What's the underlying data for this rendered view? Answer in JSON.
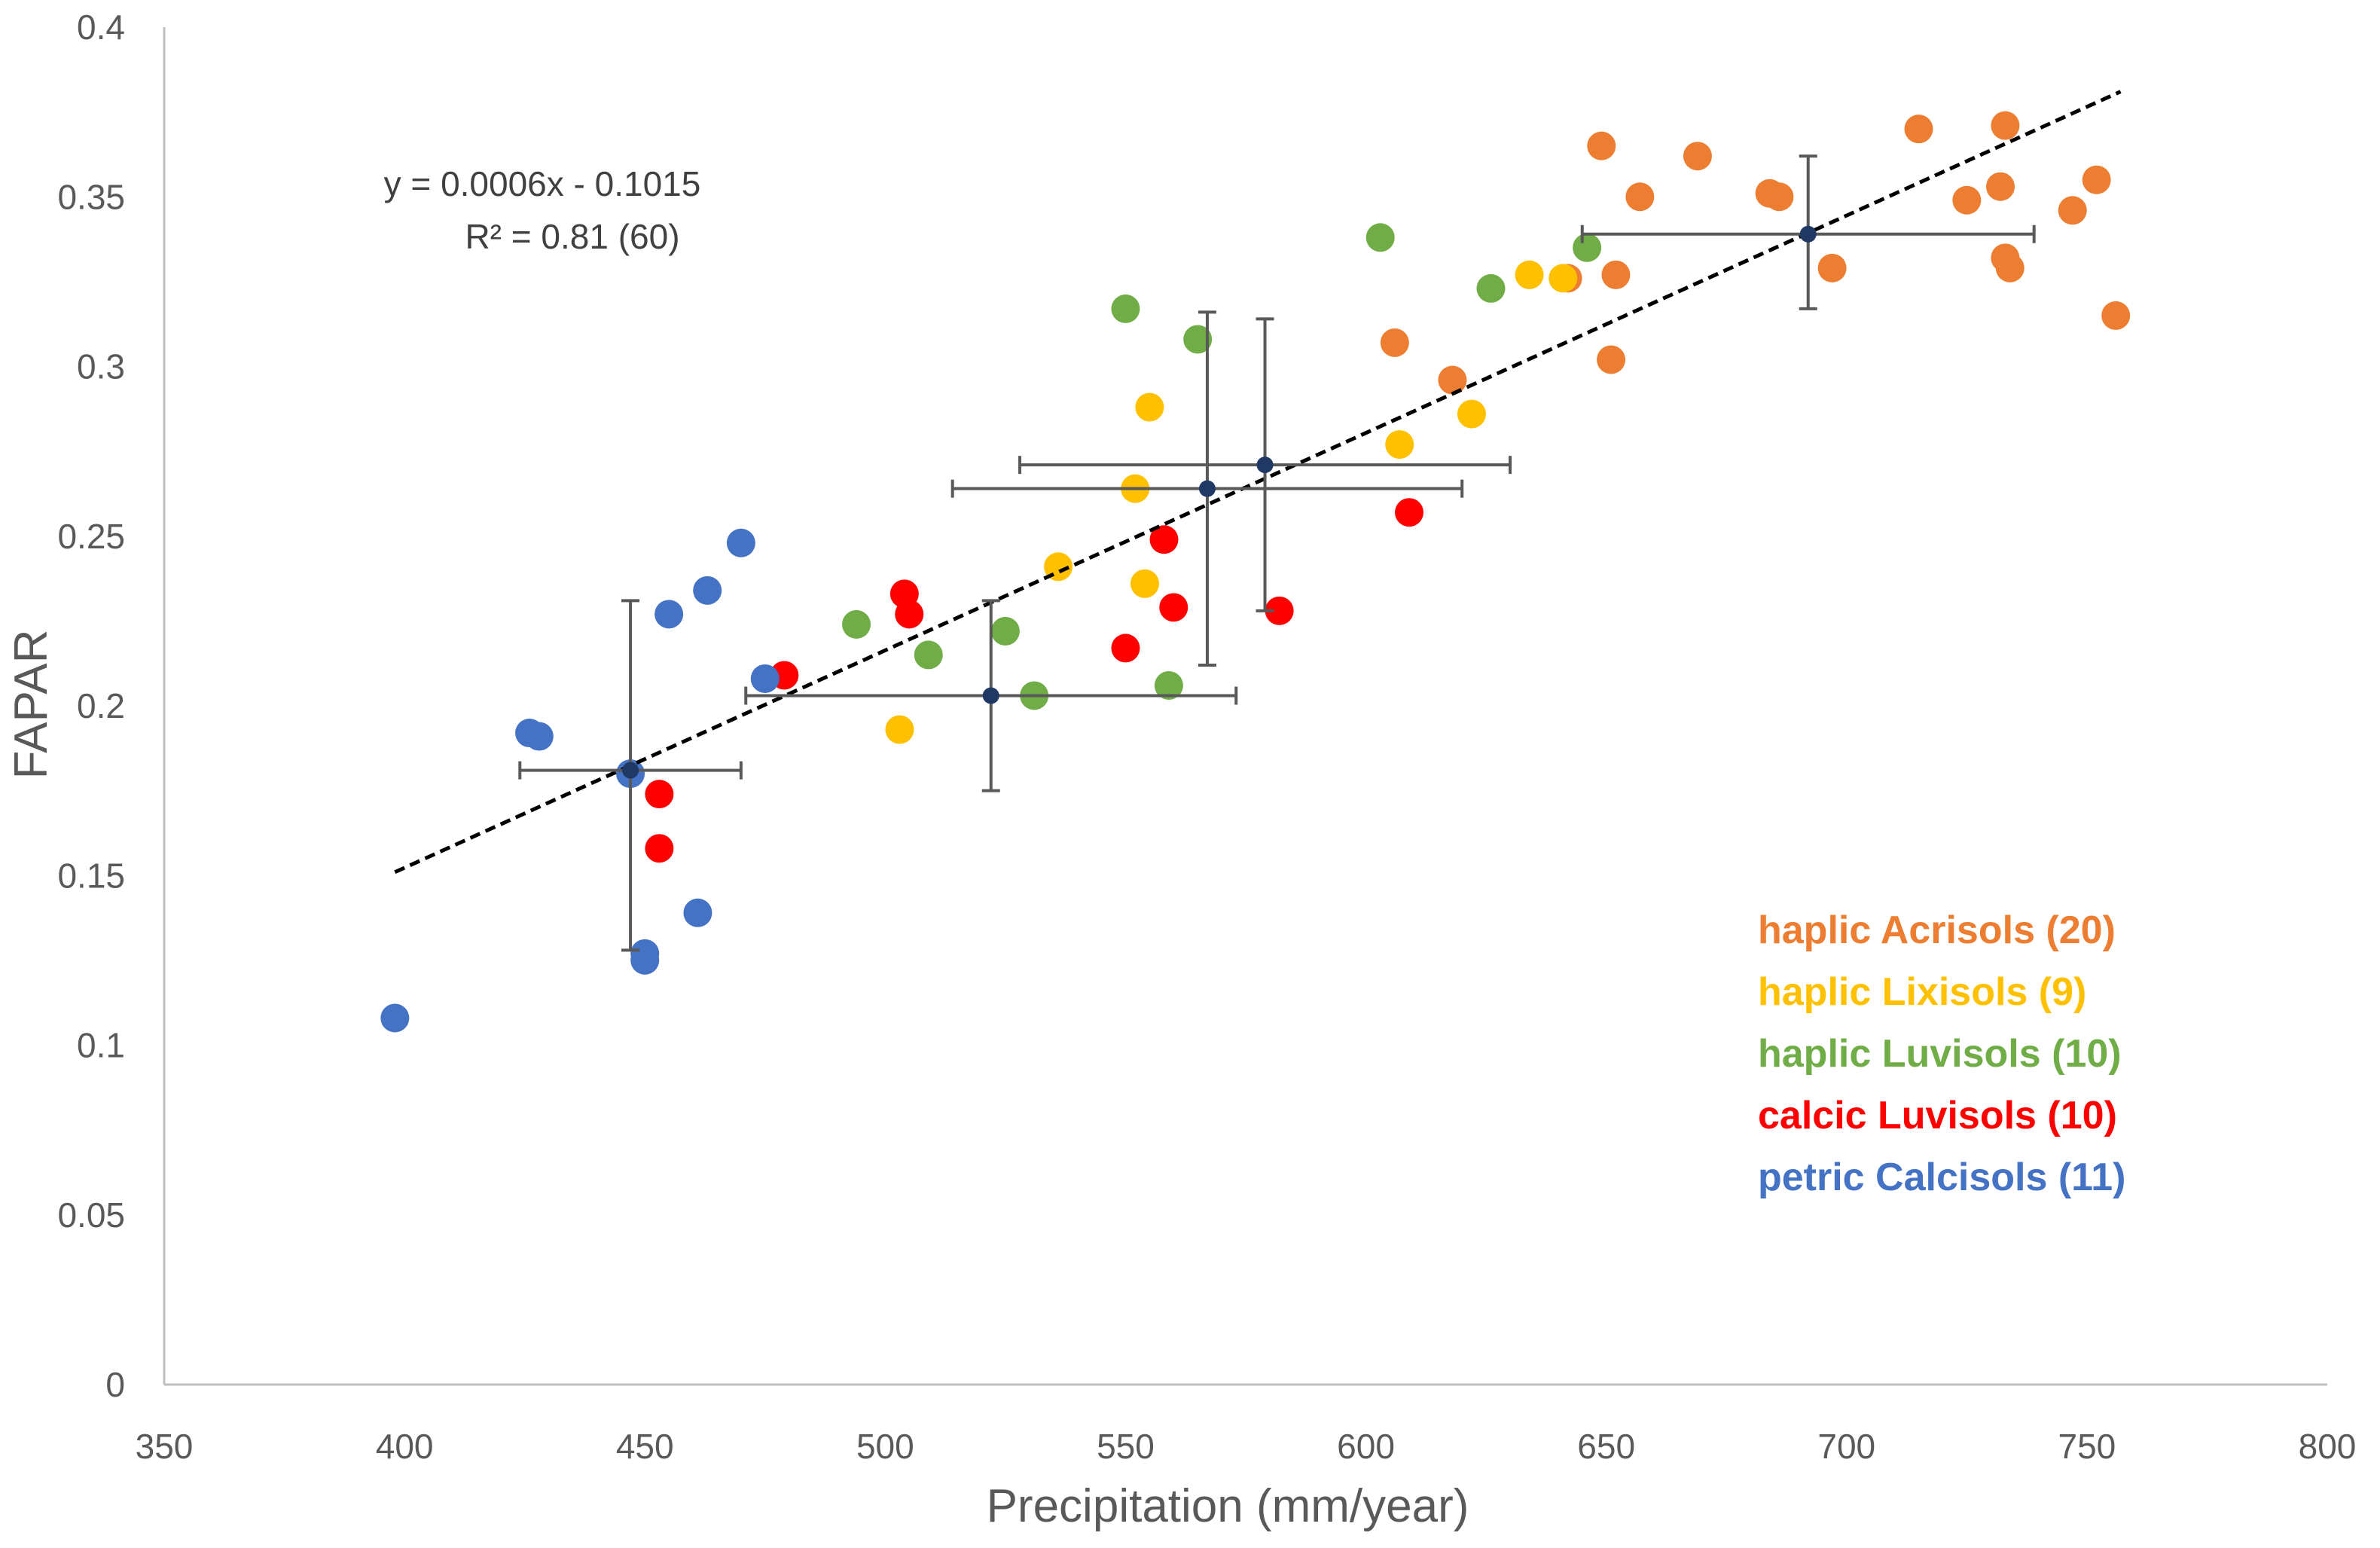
{
  "chart_data": {
    "type": "scatter",
    "title": "",
    "xlabel": "Precipitation (mm/year)",
    "ylabel": "FAPAR",
    "xlim": [
      350,
      800
    ],
    "ylim": [
      0,
      0.4
    ],
    "xticks": [
      "350",
      "400",
      "450",
      "500",
      "550",
      "600",
      "650",
      "700",
      "750",
      "800"
    ],
    "yticks": [
      "0",
      "0.05",
      "0.1",
      "0.15",
      "0.2",
      "0.25",
      "0.3",
      "0.35",
      "0.4"
    ],
    "grid": false,
    "legend_position": "bottom-right",
    "trendline": {
      "equation": "y = 0.0006x - 0.1015",
      "r2_label": "R² = 0.81 (60)",
      "x": [
        398,
        757
      ],
      "y": [
        0.151,
        0.381
      ]
    },
    "series": [
      {
        "name": "haplic Acrisols (20)",
        "color": "#ED7D31",
        "points": [
          {
            "x": 649,
            "y": 0.365
          },
          {
            "x": 657,
            "y": 0.35
          },
          {
            "x": 669,
            "y": 0.362
          },
          {
            "x": 684,
            "y": 0.351
          },
          {
            "x": 686,
            "y": 0.35
          },
          {
            "x": 715,
            "y": 0.37
          },
          {
            "x": 733,
            "y": 0.371
          },
          {
            "x": 725,
            "y": 0.349
          },
          {
            "x": 732,
            "y": 0.353
          },
          {
            "x": 752,
            "y": 0.355
          },
          {
            "x": 747,
            "y": 0.346
          },
          {
            "x": 733,
            "y": 0.332
          },
          {
            "x": 734,
            "y": 0.329
          },
          {
            "x": 697,
            "y": 0.329
          },
          {
            "x": 652,
            "y": 0.327
          },
          {
            "x": 756,
            "y": 0.315
          },
          {
            "x": 606,
            "y": 0.307
          },
          {
            "x": 651,
            "y": 0.302
          },
          {
            "x": 618,
            "y": 0.296
          },
          {
            "x": 642,
            "y": 0.326
          }
        ]
      },
      {
        "name": "haplic Lixisols (9)",
        "color": "#FFC000",
        "points": [
          {
            "x": 634,
            "y": 0.327
          },
          {
            "x": 641,
            "y": 0.326
          },
          {
            "x": 555,
            "y": 0.288
          },
          {
            "x": 622,
            "y": 0.286
          },
          {
            "x": 607,
            "y": 0.277
          },
          {
            "x": 552,
            "y": 0.264
          },
          {
            "x": 536,
            "y": 0.241
          },
          {
            "x": 554,
            "y": 0.236
          },
          {
            "x": 503,
            "y": 0.193
          }
        ]
      },
      {
        "name": "haplic Luvisols (10)",
        "color": "#70AD47",
        "points": [
          {
            "x": 603,
            "y": 0.338
          },
          {
            "x": 646,
            "y": 0.335
          },
          {
            "x": 626,
            "y": 0.323
          },
          {
            "x": 550,
            "y": 0.317
          },
          {
            "x": 565,
            "y": 0.308
          },
          {
            "x": 494,
            "y": 0.224
          },
          {
            "x": 525,
            "y": 0.222
          },
          {
            "x": 509,
            "y": 0.215
          },
          {
            "x": 559,
            "y": 0.206
          },
          {
            "x": 531,
            "y": 0.203
          }
        ]
      },
      {
        "name": "calcic Luvisols (10)",
        "color": "#FF0000",
        "points": [
          {
            "x": 609,
            "y": 0.257
          },
          {
            "x": 558,
            "y": 0.249
          },
          {
            "x": 504,
            "y": 0.233
          },
          {
            "x": 505,
            "y": 0.227
          },
          {
            "x": 560,
            "y": 0.229
          },
          {
            "x": 582,
            "y": 0.228
          },
          {
            "x": 550,
            "y": 0.217
          },
          {
            "x": 479,
            "y": 0.209
          },
          {
            "x": 453,
            "y": 0.174
          },
          {
            "x": 453,
            "y": 0.158
          }
        ]
      },
      {
        "name": "petric Calcisols (11)",
        "color": "#4472C4",
        "points": [
          {
            "x": 470,
            "y": 0.248
          },
          {
            "x": 463,
            "y": 0.234
          },
          {
            "x": 455,
            "y": 0.227
          },
          {
            "x": 475,
            "y": 0.208
          },
          {
            "x": 426,
            "y": 0.192
          },
          {
            "x": 428,
            "y": 0.191
          },
          {
            "x": 447,
            "y": 0.18
          },
          {
            "x": 461,
            "y": 0.139
          },
          {
            "x": 450,
            "y": 0.127
          },
          {
            "x": 450,
            "y": 0.125
          },
          {
            "x": 398,
            "y": 0.108
          }
        ]
      }
    ],
    "group_means": [
      {
        "x": 447,
        "y": 0.181,
        "x_err": 23,
        "y_err_plus": 0.05,
        "y_err_minus": 0.053
      },
      {
        "x": 522,
        "y": 0.203,
        "x_err": 51,
        "y_err_plus": 0.028,
        "y_err_minus": 0.028
      },
      {
        "x": 567,
        "y": 0.264,
        "x_err": 53,
        "y_err_plus": 0.052,
        "y_err_minus": 0.052
      },
      {
        "x": 579,
        "y": 0.271,
        "x_err": 51,
        "y_err_plus": 0.043,
        "y_err_minus": 0.043
      },
      {
        "x": 692,
        "y": 0.339,
        "x_err": 47,
        "y_err_plus": 0.023,
        "y_err_minus": 0.022
      }
    ],
    "colors": {
      "axis": "#BFBFBF",
      "error_bar": "#595959",
      "mean_marker": "#1F3864",
      "trendline": "#000000"
    }
  }
}
